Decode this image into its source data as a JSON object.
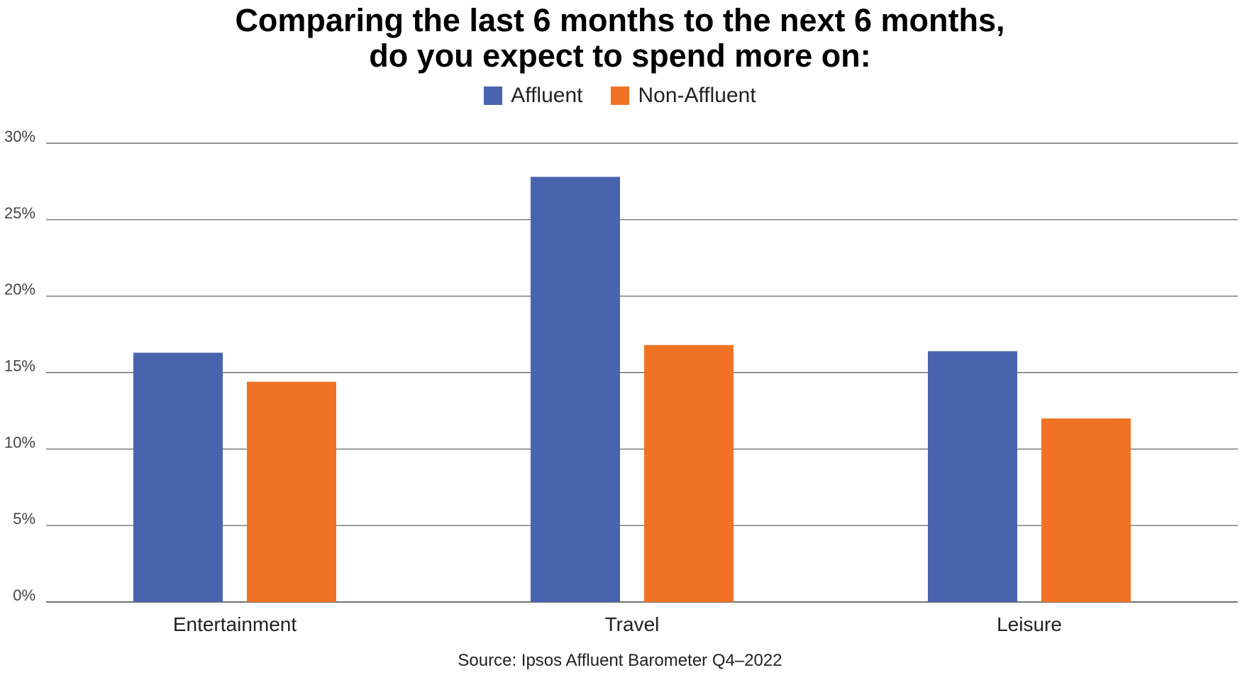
{
  "chart_data": {
    "type": "bar",
    "title": [
      "Comparing the last 6 months to the next 6 months,",
      "do you expect to spend more on:"
    ],
    "categories": [
      "Entertainment",
      "Travel",
      "Leisure"
    ],
    "series": [
      {
        "name": "Affluent",
        "color": "#4a63ad",
        "values": [
          16.3,
          27.8,
          16.4
        ]
      },
      {
        "name": "Non-Affluent",
        "color": "#f07224",
        "values": [
          14.4,
          16.8,
          12.0
        ]
      }
    ],
    "ylim": [
      0,
      30
    ],
    "yticks": [
      0,
      5,
      10,
      15,
      20,
      25,
      30
    ],
    "ytick_labels": [
      "0%",
      "5%",
      "10%",
      "15%",
      "20%",
      "25%",
      "30%"
    ],
    "xlabel": "",
    "ylabel": "",
    "grid": true,
    "legend_position": "top-center",
    "source": "Source: Ipsos Affluent Barometer Q4–2022"
  }
}
